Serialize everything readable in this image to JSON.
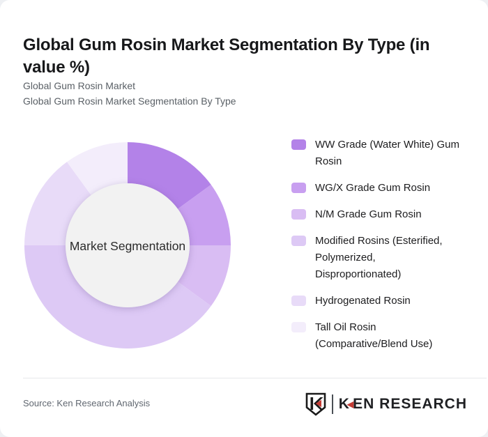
{
  "page": {
    "title": "Global Gum Rosin Market Segmentation By Type (in value %)",
    "subtitle_line1": "Global Gum Rosin Market",
    "subtitle_line2": "Global Gum Rosin Market Segmentation By Type"
  },
  "chart_data": {
    "type": "pie",
    "subtype": "donut",
    "title": "Global Gum Rosin Market Segmentation By Type (in value %)",
    "units": "value %",
    "center_label": "Market Segmentation",
    "center_fill": "#f2f2f2",
    "legend_position": "right",
    "start_angle_deg": 0,
    "direction": "clockwise",
    "outer_radius": 148,
    "inner_radius": 89,
    "segments": [
      {
        "label": "WW Grade (Water White) Gum Rosin",
        "value": 15,
        "color": "#b382e8"
      },
      {
        "label": "WG/X Grade Gum Rosin",
        "value": 10,
        "color": "#c89ff0"
      },
      {
        "label": "N/M Grade Gum Rosin",
        "value": 10,
        "color": "#d9bdf3"
      },
      {
        "label": "Modified Rosins (Esterified, Polymerized, Disproportionated)",
        "value": 40,
        "color": "#ddc9f5"
      },
      {
        "label": "Hydrogenated Rosin",
        "value": 15,
        "color": "#e8dbf8"
      },
      {
        "label": "Tall Oil Rosin (Comparative/Blend Use)",
        "value": 10,
        "color": "#f3edfb"
      }
    ]
  },
  "footer": {
    "source": "Source: Ken Research Analysis",
    "logo": {
      "k": "K",
      "triangle_glyph": "◀",
      "rest": "EN RESEARCH",
      "accent_color": "#c43c35"
    }
  }
}
